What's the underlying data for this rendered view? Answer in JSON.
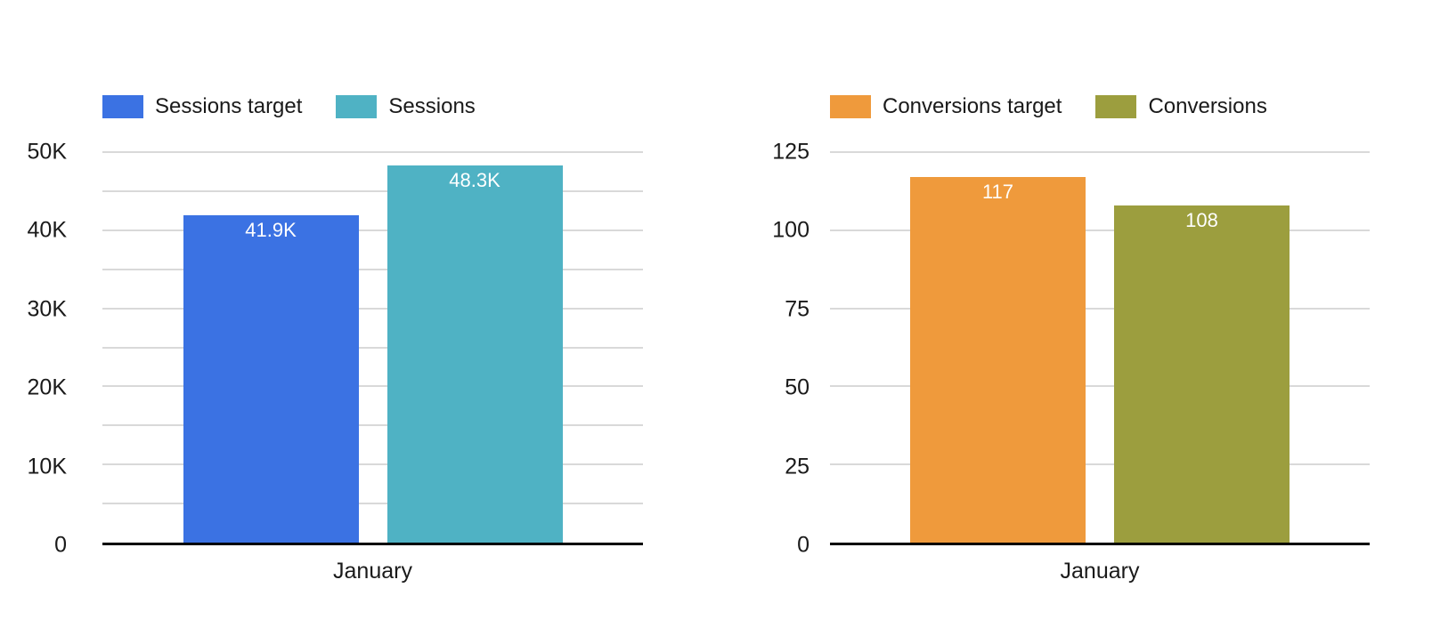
{
  "page": {
    "background": "#ffffff",
    "text_color": "#1a1a1a"
  },
  "chart_data": [
    {
      "type": "bar",
      "title": "",
      "xlabel": "",
      "ylabel": "",
      "categories": [
        "January"
      ],
      "series": [
        {
          "name": "Sessions target",
          "values": [
            41900
          ],
          "data_labels": [
            "41.9K"
          ],
          "color": "#3b72e3"
        },
        {
          "name": "Sessions",
          "values": [
            48300
          ],
          "data_labels": [
            "48.3K"
          ],
          "color": "#4fb2c4"
        }
      ],
      "ylim": [
        0,
        50000
      ],
      "ytick_values": [
        0,
        10000,
        20000,
        30000,
        40000,
        50000
      ],
      "ytick_labels": [
        "0",
        "10K",
        "20K",
        "30K",
        "40K",
        "50K"
      ],
      "minor_grid_values": [
        5000,
        15000,
        25000,
        35000,
        45000
      ],
      "grid": true,
      "grid_color": "#d9d9d9",
      "axis_color": "#000000",
      "bar_label_color": "#ffffff",
      "legend_position": "top"
    },
    {
      "type": "bar",
      "title": "",
      "xlabel": "",
      "ylabel": "",
      "categories": [
        "January"
      ],
      "series": [
        {
          "name": "Conversions target",
          "values": [
            117
          ],
          "data_labels": [
            "117"
          ],
          "color": "#ef9a3c"
        },
        {
          "name": "Conversions",
          "values": [
            108
          ],
          "data_labels": [
            "108"
          ],
          "color": "#9c9e3e"
        }
      ],
      "ylim": [
        0,
        125
      ],
      "ytick_values": [
        0,
        25,
        50,
        75,
        100,
        125
      ],
      "ytick_labels": [
        "0",
        "25",
        "50",
        "75",
        "100",
        "125"
      ],
      "minor_grid_values": [],
      "grid": true,
      "grid_color": "#d9d9d9",
      "axis_color": "#000000",
      "bar_label_color": "#ffffff",
      "legend_position": "top"
    }
  ]
}
